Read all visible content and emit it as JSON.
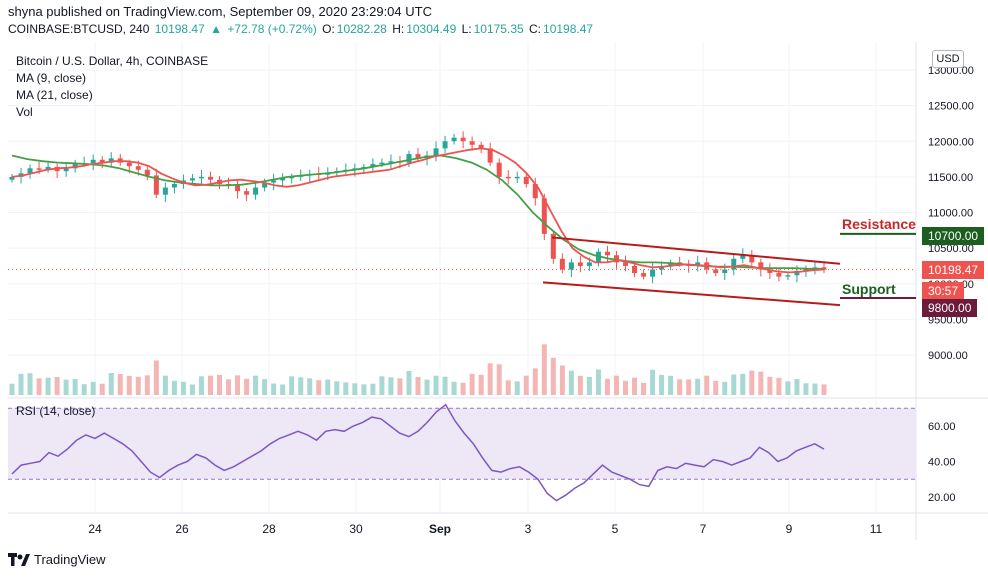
{
  "header": {
    "published": "shyna published on TradingView.com, September 09, 2020 23:29:04 UTC",
    "symbol": "COINBASE:BTCUSD, 240",
    "last": "10198.47",
    "change": "+72.78 (+0.72%)",
    "o_label": "O:",
    "o": "10282.28",
    "h_label": "H:",
    "h": "10304.49",
    "l_label": "L:",
    "l": "10175.35",
    "c_label": "C:",
    "c": "10198.47"
  },
  "legend": {
    "title": "Bitcoin / U.S. Dollar, 4h, COINBASE",
    "ma9": "MA (9, close)",
    "ma21": "MA (21, close)",
    "vol": "Vol"
  },
  "currency_button": "USD",
  "price_tags": {
    "resistance": "10700.00",
    "last": "10198.47",
    "countdown": "30:57",
    "support": "9800.00"
  },
  "annotations": {
    "resistance": "Resistance",
    "support": "Support"
  },
  "rsi_label": "RSI (14, close)",
  "footer": {
    "brand": "TradingView"
  },
  "colors": {
    "up": "#26a69a",
    "down": "#ef5350",
    "ma9": "#ef5350",
    "ma21": "#43a047",
    "channel": "#b71c1c",
    "resistance": "#c62828",
    "support": "#1b5e20",
    "rsi": "#7e57c2",
    "rsi_band": "#ede7f6"
  },
  "chart_data": [
    {
      "type": "candlestick",
      "title": "Bitcoin / U.S. Dollar, 4h, COINBASE",
      "ylim": [
        9550,
        13100
      ],
      "yticks": [
        "13000.00",
        "12500.00",
        "12000.00",
        "11500.00",
        "11000.00",
        "10500.00",
        "10000.00",
        "9500.00",
        "9000.00"
      ],
      "xticks": [
        "24",
        "26",
        "28",
        "30",
        "Sep",
        "3",
        "5",
        "7",
        "9",
        "11"
      ],
      "close_approx": [
        11500,
        11550,
        11620,
        11600,
        11640,
        11580,
        11620,
        11680,
        11690,
        11740,
        11700,
        11760,
        11700,
        11650,
        11600,
        11520,
        11250,
        11350,
        11400,
        11450,
        11480,
        11500,
        11460,
        11400,
        11380,
        11300,
        11250,
        11350,
        11420,
        11450,
        11480,
        11500,
        11520,
        11540,
        11530,
        11560,
        11580,
        11600,
        11620,
        11640,
        11680,
        11700,
        11720,
        11700,
        11820,
        11760,
        11800,
        11900,
        12000,
        12050,
        12000,
        11950,
        11900,
        11700,
        11500,
        11480,
        11500,
        11400,
        11200,
        10700,
        10350,
        10200,
        10300,
        10250,
        10300,
        10450,
        10400,
        10300,
        10250,
        10150,
        10100,
        10200,
        10250,
        10300,
        10280,
        10250,
        10300,
        10200,
        10150,
        10200,
        10350,
        10400,
        10300,
        10200,
        10150,
        10100,
        10120,
        10180,
        10200,
        10230,
        10198.47
      ],
      "ma9_approx": [
        11500,
        11520,
        11560,
        11600,
        11620,
        11630,
        11650,
        11680,
        11700,
        11720,
        11720,
        11700,
        11650,
        11550,
        11480,
        11420,
        11380,
        11390,
        11420,
        11450,
        11460,
        11440,
        11420,
        11380,
        11360,
        11380,
        11420,
        11460,
        11500,
        11520,
        11540,
        11560,
        11580,
        11600,
        11650,
        11700,
        11740,
        11790,
        11820,
        11850,
        11880,
        11900,
        11880,
        11800,
        11700,
        11550,
        11350,
        11050,
        10750,
        10500,
        10380,
        10300,
        10300,
        10330,
        10300,
        10260,
        10230,
        10240,
        10260,
        10270,
        10260,
        10250,
        10230,
        10240,
        10260,
        10230,
        10200,
        10170,
        10160,
        10170,
        10190,
        10200
      ],
      "ma21_approx": [
        11800,
        11750,
        11720,
        11700,
        11690,
        11680,
        11660,
        11620,
        11560,
        11500,
        11450,
        11420,
        11400,
        11380,
        11380,
        11390,
        11420,
        11460,
        11500,
        11520,
        11540,
        11560,
        11590,
        11620,
        11660,
        11700,
        11740,
        11780,
        11800,
        11760,
        11700,
        11600,
        11450,
        11250,
        11000,
        10800,
        10620,
        10480,
        10400,
        10350,
        10320,
        10300,
        10300,
        10290,
        10270,
        10250,
        10240,
        10240,
        10230,
        10220,
        10220,
        10220,
        10210,
        10210
      ],
      "volume_shown": "volume histogram at bottom of price panel",
      "channel": {
        "upper": [
          10650,
          10280
        ],
        "lower": [
          10020,
          9700
        ]
      },
      "levels": {
        "resistance": 10700,
        "support": 9800
      }
    },
    {
      "type": "line",
      "title": "RSI (14, close)",
      "ylim": [
        10,
        75
      ],
      "yticks": [
        "60.00",
        "40.00",
        "20.00"
      ],
      "band": [
        30,
        70
      ],
      "values": [
        33,
        38,
        39,
        40,
        45,
        43,
        47,
        52,
        55,
        53,
        56,
        53,
        50,
        46,
        40,
        34,
        31,
        35,
        38,
        40,
        44,
        42,
        38,
        35,
        37,
        40,
        43,
        46,
        50,
        53,
        55,
        57,
        55,
        52,
        57,
        58,
        57,
        60,
        62,
        65,
        64,
        60,
        56,
        54,
        57,
        62,
        68,
        72,
        63,
        56,
        50,
        42,
        35,
        34,
        36,
        37,
        34,
        30,
        22,
        18,
        21,
        25,
        28,
        33,
        38,
        34,
        32,
        30,
        27,
        26,
        35,
        37,
        36,
        39,
        38,
        37,
        41,
        40,
        38,
        40,
        42,
        48,
        45,
        40,
        42,
        46,
        48,
        50,
        47
      ]
    }
  ]
}
